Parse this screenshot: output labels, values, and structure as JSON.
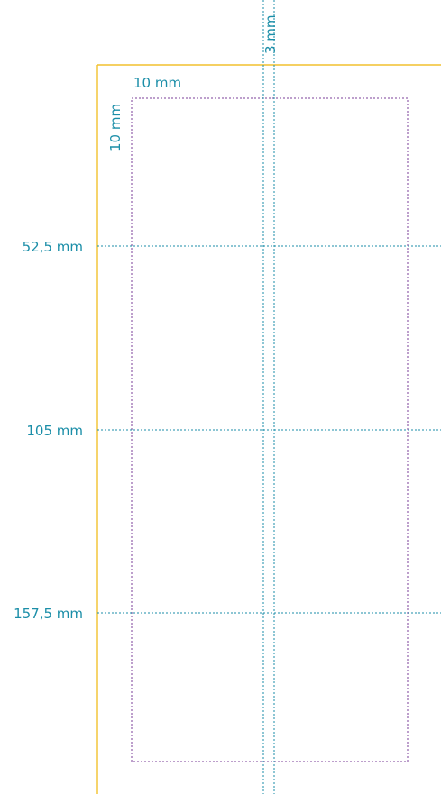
{
  "colors": {
    "page_edge": "#f2c12e",
    "guide": "#1b8ea8",
    "margin_frame": "#7b3f98",
    "label": "#1b8ea8"
  },
  "labels": {
    "top_margin": "10 mm",
    "left_margin": "10 mm",
    "gutter": "3 mm",
    "row_1": "52,5 mm",
    "row_2": "105 mm",
    "row_3": "157,5 mm"
  }
}
